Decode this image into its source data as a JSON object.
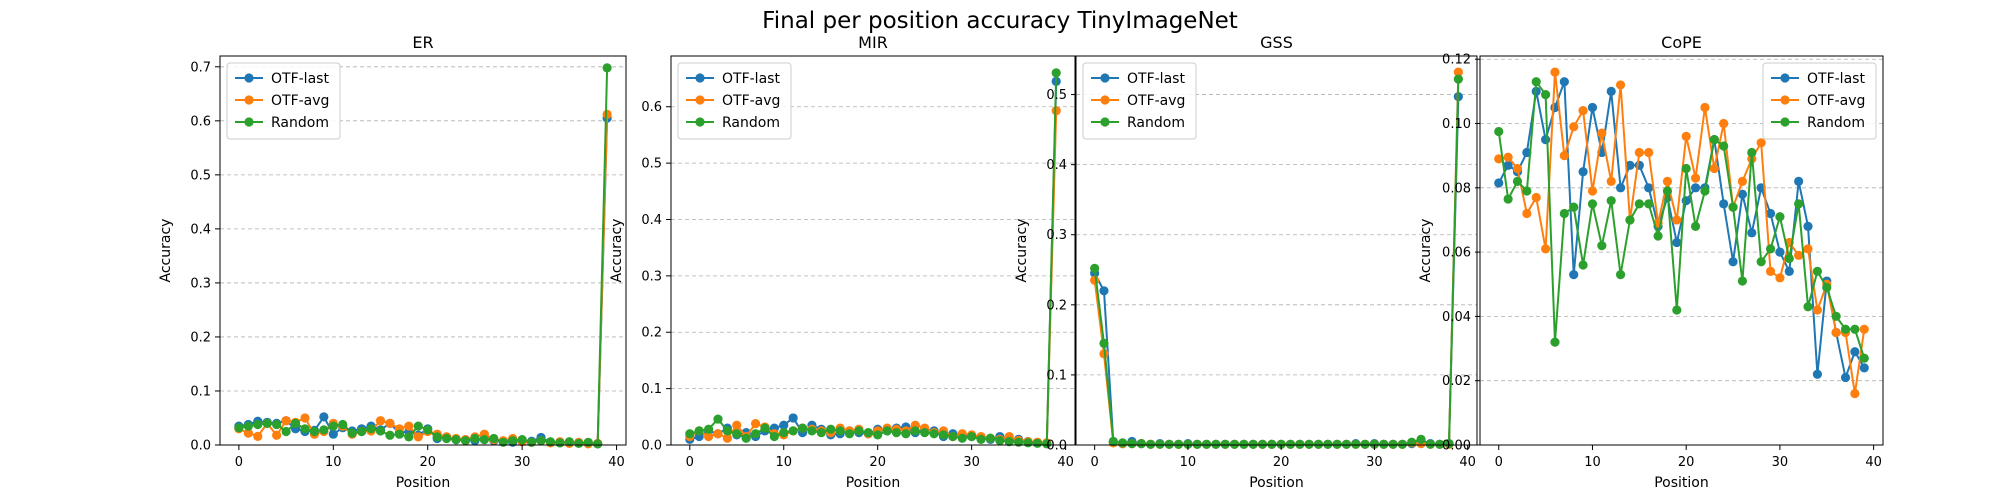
{
  "figure_title": "Final per position accuracy TinyImageNet",
  "colors": {
    "OTF-last": "#1f77b4",
    "OTF-avg": "#ff7f0e",
    "Random": "#2ca02c"
  },
  "chart_data": [
    {
      "type": "line",
      "title": "ER",
      "xlabel": "Position",
      "ylabel": "Accuracy",
      "xlim": [
        -2,
        41
      ],
      "ylim": [
        0,
        0.72
      ],
      "xticks": [
        0,
        10,
        20,
        30,
        40
      ],
      "yticks": [
        0.0,
        0.1,
        0.2,
        0.3,
        0.4,
        0.5,
        0.6,
        0.7
      ],
      "grid": "y-dashed",
      "legend": "top-left",
      "x": [
        0,
        1,
        2,
        3,
        4,
        5,
        6,
        7,
        8,
        9,
        10,
        11,
        12,
        13,
        14,
        15,
        16,
        17,
        18,
        19,
        20,
        21,
        22,
        23,
        24,
        25,
        26,
        27,
        28,
        29,
        30,
        31,
        32,
        33,
        34,
        35,
        36,
        37,
        38,
        39
      ],
      "series": [
        {
          "name": "OTF-last",
          "values": [
            0.035,
            0.038,
            0.044,
            0.042,
            0.04,
            0.045,
            0.03,
            0.025,
            0.027,
            0.052,
            0.02,
            0.032,
            0.026,
            0.03,
            0.035,
            0.028,
            0.04,
            0.022,
            0.025,
            0.018,
            0.03,
            0.012,
            0.015,
            0.01,
            0.01,
            0.008,
            0.012,
            0.008,
            0.006,
            0.005,
            0.008,
            0.007,
            0.014,
            0.005,
            0.004,
            0.005,
            0.004,
            0.003,
            0.002,
            0.605
          ]
        },
        {
          "name": "OTF-avg",
          "values": [
            0.03,
            0.022,
            0.016,
            0.04,
            0.018,
            0.045,
            0.042,
            0.05,
            0.02,
            0.025,
            0.04,
            0.035,
            0.02,
            0.025,
            0.026,
            0.045,
            0.04,
            0.03,
            0.035,
            0.015,
            0.025,
            0.02,
            0.015,
            0.012,
            0.01,
            0.015,
            0.02,
            0.01,
            0.008,
            0.012,
            0.006,
            0.005,
            0.008,
            0.004,
            0.006,
            0.003,
            0.005,
            0.002,
            0.003,
            0.612
          ]
        },
        {
          "name": "Random",
          "values": [
            0.032,
            0.035,
            0.038,
            0.04,
            0.038,
            0.025,
            0.04,
            0.03,
            0.025,
            0.028,
            0.035,
            0.038,
            0.022,
            0.025,
            0.03,
            0.026,
            0.018,
            0.02,
            0.015,
            0.035,
            0.028,
            0.015,
            0.012,
            0.01,
            0.008,
            0.012,
            0.01,
            0.012,
            0.005,
            0.008,
            0.01,
            0.005,
            0.008,
            0.006,
            0.004,
            0.006,
            0.003,
            0.005,
            0.002,
            0.698
          ]
        }
      ]
    },
    {
      "type": "line",
      "title": "MIR",
      "xlabel": "Position",
      "ylabel": "Accuracy",
      "xlim": [
        -2,
        41
      ],
      "ylim": [
        0,
        0.69
      ],
      "xticks": [
        0,
        10,
        20,
        30,
        40
      ],
      "yticks": [
        0.0,
        0.1,
        0.2,
        0.3,
        0.4,
        0.5,
        0.6
      ],
      "grid": "y-dashed",
      "legend": "top-left",
      "x": [
        0,
        1,
        2,
        3,
        4,
        5,
        6,
        7,
        8,
        9,
        10,
        11,
        12,
        13,
        14,
        15,
        16,
        17,
        18,
        19,
        20,
        21,
        22,
        23,
        24,
        25,
        26,
        27,
        28,
        29,
        30,
        31,
        32,
        33,
        34,
        35,
        36,
        37,
        38,
        39
      ],
      "series": [
        {
          "name": "OTF-last",
          "values": [
            0.01,
            0.015,
            0.025,
            0.02,
            0.03,
            0.018,
            0.022,
            0.015,
            0.025,
            0.03,
            0.035,
            0.048,
            0.022,
            0.035,
            0.028,
            0.018,
            0.02,
            0.025,
            0.022,
            0.02,
            0.028,
            0.025,
            0.03,
            0.032,
            0.022,
            0.028,
            0.025,
            0.015,
            0.02,
            0.018,
            0.015,
            0.012,
            0.01,
            0.015,
            0.008,
            0.01,
            0.006,
            0.004,
            0.003,
            0.645
          ]
        },
        {
          "name": "OTF-avg",
          "values": [
            0.015,
            0.025,
            0.015,
            0.02,
            0.012,
            0.035,
            0.015,
            0.038,
            0.032,
            0.02,
            0.018,
            0.025,
            0.03,
            0.028,
            0.025,
            0.022,
            0.03,
            0.025,
            0.028,
            0.02,
            0.025,
            0.03,
            0.028,
            0.025,
            0.035,
            0.03,
            0.022,
            0.025,
            0.015,
            0.02,
            0.018,
            0.015,
            0.012,
            0.01,
            0.015,
            0.008,
            0.006,
            0.005,
            0.004,
            0.593
          ]
        },
        {
          "name": "Random",
          "values": [
            0.02,
            0.025,
            0.028,
            0.046,
            0.025,
            0.02,
            0.012,
            0.02,
            0.03,
            0.015,
            0.022,
            0.025,
            0.03,
            0.025,
            0.022,
            0.028,
            0.025,
            0.02,
            0.025,
            0.022,
            0.018,
            0.025,
            0.022,
            0.02,
            0.025,
            0.022,
            0.02,
            0.018,
            0.015,
            0.012,
            0.015,
            0.01,
            0.012,
            0.008,
            0.006,
            0.005,
            0.004,
            0.003,
            0.002,
            0.66
          ]
        }
      ]
    },
    {
      "type": "line",
      "title": "GSS",
      "xlabel": "Position",
      "ylabel": "Accuracy",
      "xlim": [
        -2,
        41
      ],
      "ylim": [
        0,
        0.555
      ],
      "xticks": [
        0,
        10,
        20,
        30,
        40
      ],
      "yticks": [
        0.0,
        0.1,
        0.2,
        0.3,
        0.4,
        0.5
      ],
      "grid": "y-dashed",
      "legend": "top-left",
      "x": [
        0,
        1,
        2,
        3,
        4,
        5,
        6,
        7,
        8,
        9,
        10,
        11,
        12,
        13,
        14,
        15,
        16,
        17,
        18,
        19,
        20,
        21,
        22,
        23,
        24,
        25,
        26,
        27,
        28,
        29,
        30,
        31,
        32,
        33,
        34,
        35,
        36,
        37,
        38,
        39
      ],
      "series": [
        {
          "name": "OTF-last",
          "values": [
            0.245,
            0.22,
            0.005,
            0.002,
            0.005,
            0.002,
            0.001,
            0.002,
            0.001,
            0.001,
            0.002,
            0.001,
            0.001,
            0.001,
            0.001,
            0.001,
            0.001,
            0.001,
            0.001,
            0.001,
            0.001,
            0.001,
            0.001,
            0.001,
            0.001,
            0.001,
            0.001,
            0.001,
            0.002,
            0.001,
            0.002,
            0.001,
            0.001,
            0.001,
            0.002,
            0.004,
            0.002,
            0.001,
            0.002,
            0.497
          ]
        },
        {
          "name": "OTF-avg",
          "values": [
            0.235,
            0.13,
            0.003,
            0.002,
            0.002,
            0.002,
            0.001,
            0.001,
            0.001,
            0.001,
            0.001,
            0.001,
            0.001,
            0.001,
            0.001,
            0.001,
            0.001,
            0.001,
            0.001,
            0.001,
            0.001,
            0.001,
            0.001,
            0.001,
            0.001,
            0.001,
            0.001,
            0.001,
            0.001,
            0.001,
            0.001,
            0.001,
            0.001,
            0.001,
            0.003,
            0.002,
            0.001,
            0.001,
            0.001,
            0.532
          ]
        },
        {
          "name": "Random",
          "values": [
            0.252,
            0.145,
            0.005,
            0.003,
            0.002,
            0.002,
            0.001,
            0.001,
            0.001,
            0.001,
            0.001,
            0.001,
            0.001,
            0.001,
            0.001,
            0.001,
            0.001,
            0.001,
            0.001,
            0.001,
            0.001,
            0.001,
            0.001,
            0.001,
            0.001,
            0.001,
            0.001,
            0.001,
            0.001,
            0.001,
            0.001,
            0.001,
            0.001,
            0.001,
            0.004,
            0.008,
            0.001,
            0.001,
            0.002,
            0.522
          ]
        }
      ]
    },
    {
      "type": "line",
      "title": "CoPE",
      "xlabel": "Position",
      "ylabel": "Accuracy",
      "xlim": [
        -2,
        41
      ],
      "ylim": [
        0,
        0.121
      ],
      "xticks": [
        0,
        10,
        20,
        30,
        40
      ],
      "yticks": [
        0.0,
        0.02,
        0.04,
        0.06,
        0.08,
        0.1,
        0.12
      ],
      "grid": "y-dashed",
      "legend": "top-right",
      "x": [
        0,
        1,
        2,
        3,
        4,
        5,
        6,
        7,
        8,
        9,
        10,
        11,
        12,
        13,
        14,
        15,
        16,
        17,
        18,
        19,
        20,
        21,
        22,
        23,
        24,
        25,
        26,
        27,
        28,
        29,
        30,
        31,
        32,
        33,
        34,
        35,
        36,
        37,
        38,
        39
      ],
      "series": [
        {
          "name": "OTF-last",
          "values": [
            0.0815,
            0.087,
            0.085,
            0.091,
            0.11,
            0.095,
            0.105,
            0.113,
            0.053,
            0.085,
            0.105,
            0.091,
            0.11,
            0.08,
            0.087,
            0.087,
            0.08,
            0.068,
            0.077,
            0.063,
            0.076,
            0.08,
            0.08,
            0.095,
            0.075,
            0.057,
            0.078,
            0.066,
            0.08,
            0.072,
            0.06,
            0.054,
            0.082,
            0.068,
            0.022,
            0.051,
            0.035,
            0.021,
            0.029,
            0.024
          ]
        },
        {
          "name": "OTF-avg",
          "values": [
            0.089,
            0.0895,
            0.086,
            0.072,
            0.077,
            0.061,
            0.116,
            0.09,
            0.099,
            0.104,
            0.079,
            0.097,
            0.082,
            0.112,
            0.07,
            0.091,
            0.091,
            0.069,
            0.082,
            0.07,
            0.096,
            0.083,
            0.105,
            0.086,
            0.1,
            0.074,
            0.082,
            0.089,
            0.094,
            0.054,
            0.052,
            0.063,
            0.059,
            0.061,
            0.042,
            0.05,
            0.035,
            0.035,
            0.016,
            0.036
          ]
        },
        {
          "name": "Random",
          "values": [
            0.0975,
            0.0765,
            0.082,
            0.079,
            0.113,
            0.109,
            0.032,
            0.072,
            0.074,
            0.056,
            0.075,
            0.062,
            0.076,
            0.053,
            0.07,
            0.075,
            0.075,
            0.065,
            0.079,
            0.042,
            0.086,
            0.068,
            0.079,
            0.095,
            0.093,
            0.074,
            0.051,
            0.091,
            0.057,
            0.061,
            0.071,
            0.058,
            0.075,
            0.043,
            0.054,
            0.049,
            0.04,
            0.036,
            0.036,
            0.027
          ]
        }
      ]
    }
  ]
}
